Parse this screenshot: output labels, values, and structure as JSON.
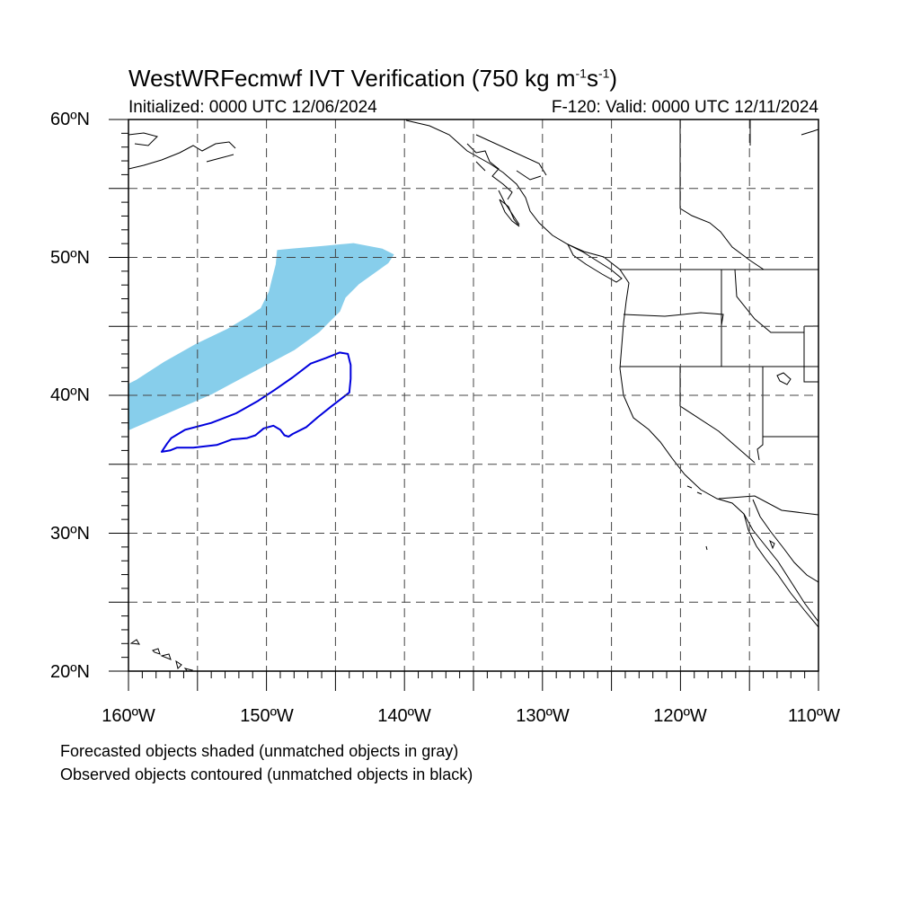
{
  "title": {
    "text": "WestWRFecmwf IVT Verification (750 kg m",
    "sup1": "-1",
    "mid": "s",
    "sup2": "-1",
    "end": ")"
  },
  "init_label": "Initialized: 0000 UTC 12/06/2024",
  "valid_label": "F-120: Valid: 0000 UTC 12/11/2024",
  "map": {
    "lon_range": [
      -160,
      -110
    ],
    "lat_range": [
      20,
      60
    ],
    "grid_step_deg": 5,
    "grid": "dashed",
    "lat_labels": [
      "60ºN",
      "50ºN",
      "40ºN",
      "30ºN",
      "20ºN"
    ],
    "lon_labels": [
      "160ºW",
      "150ºW",
      "140ºW",
      "130ºW",
      "120ºW",
      "110ºW"
    ],
    "forecast_object": {
      "color": "#87ceeb",
      "outline_lonlat": [
        [
          -160,
          37.5
        ],
        [
          -157,
          38.8
        ],
        [
          -154,
          40.1
        ],
        [
          -151,
          41.7
        ],
        [
          -148,
          43.3
        ],
        [
          -146.2,
          44.6
        ],
        [
          -145.6,
          45.2
        ],
        [
          -144.7,
          46.1
        ],
        [
          -144.3,
          47.1
        ],
        [
          -143.3,
          48.1
        ],
        [
          -141.9,
          49.1
        ],
        [
          -141.2,
          49.6
        ],
        [
          -140.8,
          50.2
        ],
        [
          -141.6,
          50.6
        ],
        [
          -143.7,
          51.0
        ],
        [
          -145.9,
          50.8
        ],
        [
          -148.2,
          50.6
        ],
        [
          -149.2,
          50.5
        ],
        [
          -149.3,
          49.5
        ],
        [
          -149.6,
          48.3
        ],
        [
          -149.8,
          47.5
        ],
        [
          -150.4,
          46.3
        ],
        [
          -151.3,
          45.7
        ],
        [
          -152.8,
          44.8
        ],
        [
          -155.1,
          43.7
        ],
        [
          -157.4,
          42.4
        ],
        [
          -159.4,
          41.1
        ],
        [
          -160,
          40.8
        ]
      ]
    },
    "observed_object": {
      "color": "#0000dd",
      "outline_lonlat": [
        [
          -157.6,
          35.9
        ],
        [
          -157.2,
          36.5
        ],
        [
          -156.9,
          36.9
        ],
        [
          -155.9,
          37.5
        ],
        [
          -154.0,
          38.0
        ],
        [
          -152.2,
          38.7
        ],
        [
          -150.6,
          39.6
        ],
        [
          -149.4,
          40.4
        ],
        [
          -148.1,
          41.3
        ],
        [
          -146.8,
          42.3
        ],
        [
          -145.7,
          42.7
        ],
        [
          -144.7,
          43.1
        ],
        [
          -144.1,
          43.0
        ],
        [
          -143.9,
          42.2
        ],
        [
          -143.9,
          41.2
        ],
        [
          -144.0,
          40.2
        ],
        [
          -145.3,
          39.2
        ],
        [
          -146.3,
          38.4
        ],
        [
          -147.1,
          37.7
        ],
        [
          -148.1,
          37.2
        ],
        [
          -148.4,
          37.0
        ],
        [
          -148.7,
          37.1
        ],
        [
          -149.0,
          37.5
        ],
        [
          -149.5,
          37.8
        ],
        [
          -150.2,
          37.6
        ],
        [
          -150.8,
          37.1
        ],
        [
          -151.4,
          36.9
        ],
        [
          -152.5,
          36.8
        ],
        [
          -153.6,
          36.4
        ],
        [
          -155.3,
          36.2
        ],
        [
          -156.5,
          36.2
        ],
        [
          -157.0,
          36.0
        ],
        [
          -157.6,
          35.9
        ]
      ]
    }
  },
  "footnotes": [
    "Forecasted objects shaded (unmatched objects in gray)",
    "Observed objects contoured (unmatched objects in black)"
  ]
}
